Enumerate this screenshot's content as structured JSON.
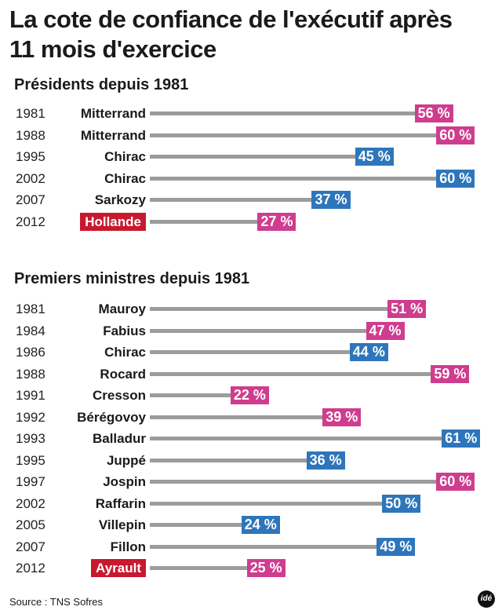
{
  "title": "La cote de confiance de l'exécutif après 11 mois d'exercice",
  "source": "Source : TNS Sofres",
  "logo_text": "idé",
  "colors": {
    "pink": "#cf3d8e",
    "blue": "#2e76bb",
    "line": "#9c9c9c",
    "highlight": "#c8192e"
  },
  "chart_data": [
    {
      "type": "bar",
      "title": "Présidents depuis 1981",
      "unit": "%",
      "xlim": [
        0,
        63
      ],
      "rows": [
        {
          "year": "1981",
          "name": "Mitterrand",
          "value": 56,
          "label": "56 %",
          "color": "pink",
          "highlight": false
        },
        {
          "year": "1988",
          "name": "Mitterrand",
          "value": 60,
          "label": "60 %",
          "color": "pink",
          "highlight": false
        },
        {
          "year": "1995",
          "name": "Chirac",
          "value": 45,
          "label": "45 %",
          "color": "blue",
          "highlight": false
        },
        {
          "year": "2002",
          "name": "Chirac",
          "value": 60,
          "label": "60 %",
          "color": "blue",
          "highlight": false
        },
        {
          "year": "2007",
          "name": "Sarkozy",
          "value": 37,
          "label": "37 %",
          "color": "blue",
          "highlight": false
        },
        {
          "year": "2012",
          "name": "Hollande",
          "value": 27,
          "label": "27 %",
          "color": "pink",
          "highlight": true
        }
      ]
    },
    {
      "type": "bar",
      "title": "Premiers ministres depuis 1981",
      "unit": "%",
      "xlim": [
        0,
        63
      ],
      "rows": [
        {
          "year": "1981",
          "name": "Mauroy",
          "value": 51,
          "label": "51 %",
          "color": "pink",
          "highlight": false
        },
        {
          "year": "1984",
          "name": "Fabius",
          "value": 47,
          "label": "47 %",
          "color": "pink",
          "highlight": false
        },
        {
          "year": "1986",
          "name": "Chirac",
          "value": 44,
          "label": "44 %",
          "color": "blue",
          "highlight": false
        },
        {
          "year": "1988",
          "name": "Rocard",
          "value": 59,
          "label": "59 %",
          "color": "pink",
          "highlight": false
        },
        {
          "year": "1991",
          "name": "Cresson",
          "value": 22,
          "label": "22 %",
          "color": "pink",
          "highlight": false
        },
        {
          "year": "1992",
          "name": "Bérégovoy",
          "value": 39,
          "label": "39 %",
          "color": "pink",
          "highlight": false
        },
        {
          "year": "1993",
          "name": "Balladur",
          "value": 61,
          "label": "61 %",
          "color": "blue",
          "highlight": false
        },
        {
          "year": "1995",
          "name": "Juppé",
          "value": 36,
          "label": "36 %",
          "color": "blue",
          "highlight": false
        },
        {
          "year": "1997",
          "name": "Jospin",
          "value": 60,
          "label": "60 %",
          "color": "pink",
          "highlight": false
        },
        {
          "year": "2002",
          "name": "Raffarin",
          "value": 50,
          "label": "50 %",
          "color": "blue",
          "highlight": false
        },
        {
          "year": "2005",
          "name": "Villepin",
          "value": 24,
          "label": "24 %",
          "color": "blue",
          "highlight": false
        },
        {
          "year": "2007",
          "name": "Fillon",
          "value": 49,
          "label": "49 %",
          "color": "blue",
          "highlight": false
        },
        {
          "year": "2012",
          "name": "Ayrault",
          "value": 25,
          "label": "25 %",
          "color": "pink",
          "highlight": true
        }
      ]
    }
  ]
}
